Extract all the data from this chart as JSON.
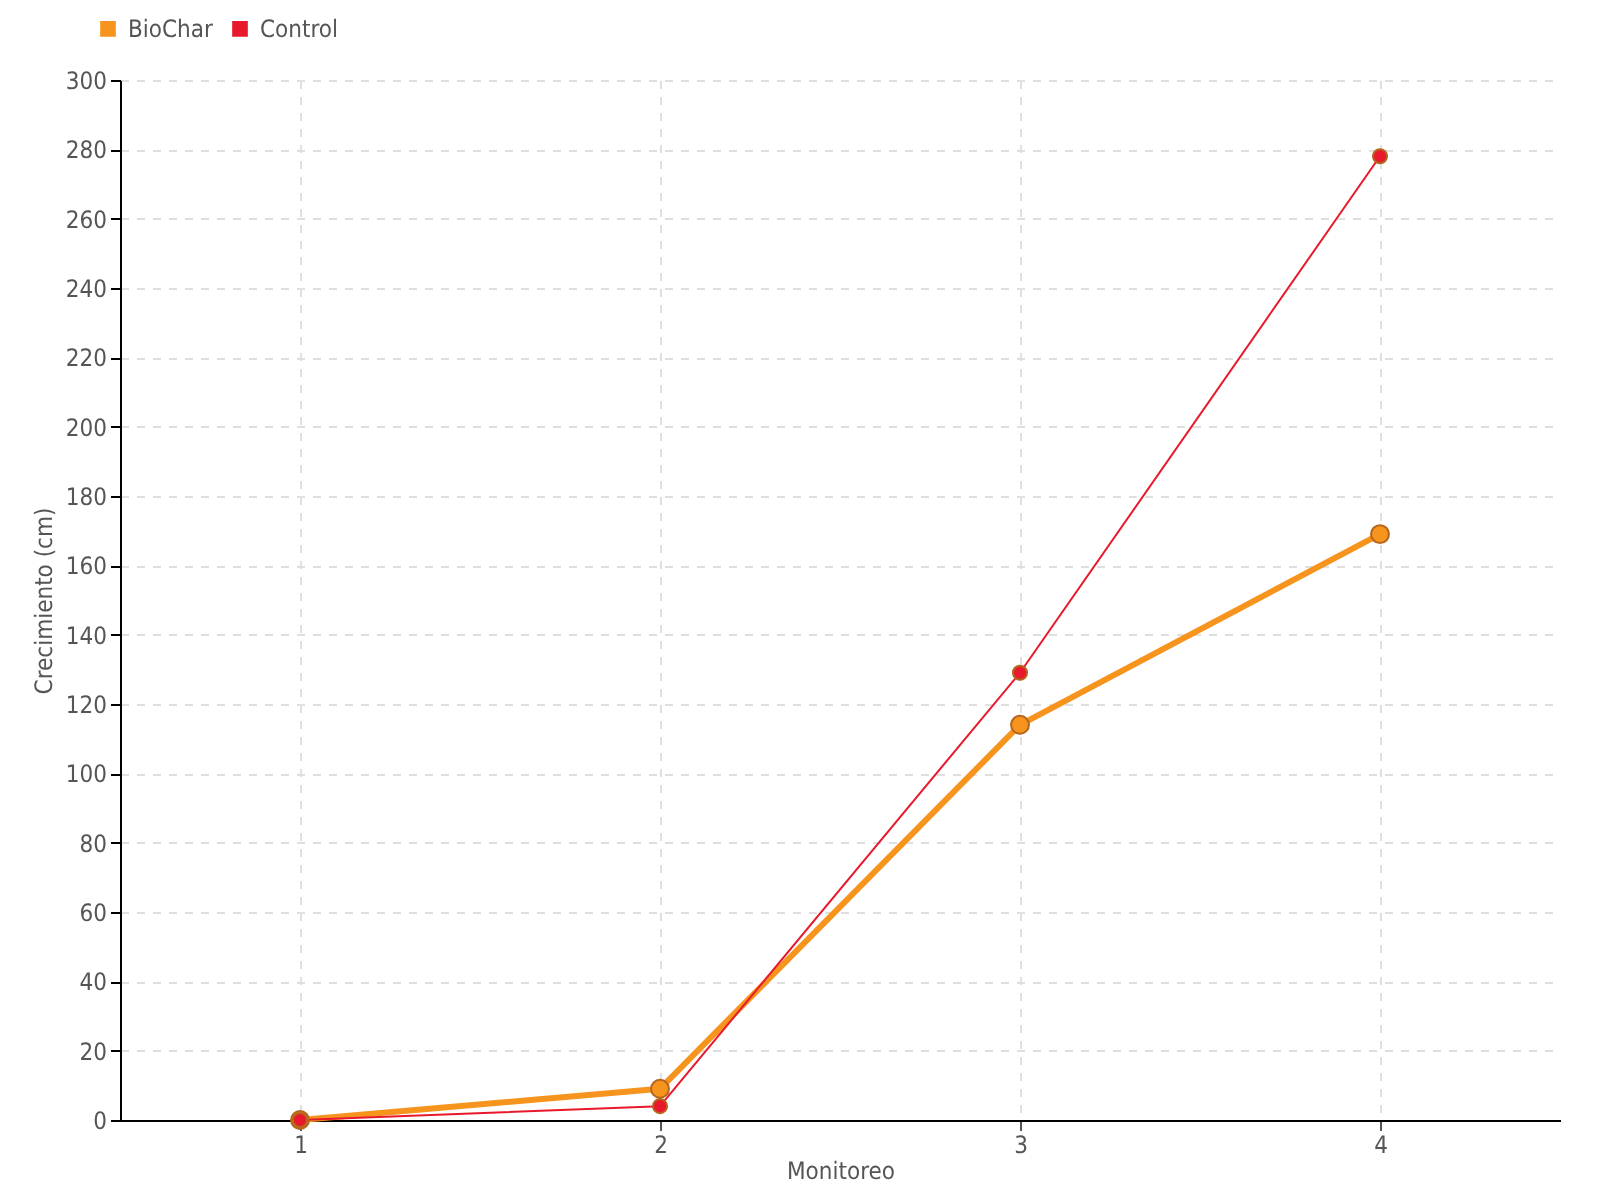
{
  "chart_data": {
    "type": "line",
    "xlabel": "Monitoreo",
    "ylabel": "Crecimiento (cm)",
    "x": [
      1,
      2,
      3,
      4
    ],
    "series": [
      {
        "name": "BioChar",
        "color": "#f7941d",
        "values": [
          0,
          9,
          114,
          169
        ]
      },
      {
        "name": "Control",
        "color": "#e8192c",
        "values": [
          0,
          4,
          129,
          278
        ]
      }
    ],
    "xlim": [
      0.5,
      4.5
    ],
    "xticks": [
      1,
      2,
      3,
      4
    ],
    "ylim": [
      0,
      300
    ],
    "yticks": [
      0,
      20,
      40,
      60,
      80,
      100,
      120,
      140,
      160,
      180,
      200,
      220,
      240,
      260,
      280,
      300
    ],
    "grid": true,
    "legend": "top left",
    "marker": "circle",
    "line_style": "solid"
  }
}
